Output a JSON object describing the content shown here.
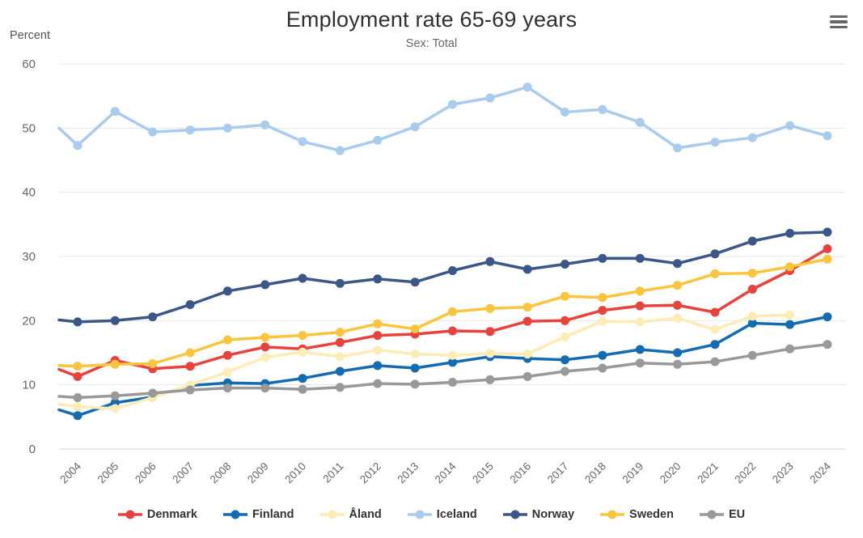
{
  "header": {
    "menu_icon": "hamburger-menu-icon"
  },
  "y_axis": {
    "title": "Percent",
    "ticks": [
      0,
      10,
      20,
      30,
      40,
      50,
      60
    ]
  },
  "chart_data": {
    "type": "line",
    "title": "Employment rate 65-69 years",
    "subtitle": "Sex: Total",
    "ylabel": "Percent",
    "ylim": [
      0,
      60
    ],
    "grid": "horizontal",
    "legend_position": "bottom",
    "x": [
      2004,
      2005,
      2006,
      2007,
      2008,
      2009,
      2010,
      2011,
      2012,
      2013,
      2014,
      2015,
      2016,
      2017,
      2018,
      2019,
      2020,
      2021,
      2022,
      2023,
      2024
    ],
    "series": [
      {
        "name": "Denmark",
        "color": "#e8423c",
        "lead_in": 12.4,
        "values": [
          11.3,
          13.8,
          12.5,
          12.9,
          14.6,
          15.9,
          15.6,
          16.6,
          17.7,
          17.9,
          18.4,
          18.3,
          19.9,
          20.0,
          21.6,
          22.3,
          22.4,
          21.3,
          24.9,
          27.8,
          31.2
        ]
      },
      {
        "name": "Finland",
        "color": "#136cb2",
        "lead_in": 6.1,
        "values": [
          5.2,
          7.2,
          8.1,
          9.9,
          10.3,
          10.2,
          11.0,
          12.1,
          13.0,
          12.6,
          13.5,
          14.4,
          14.1,
          13.9,
          14.6,
          15.5,
          15.0,
          16.3,
          19.6,
          19.4,
          20.6
        ]
      },
      {
        "name": "Åland",
        "color": "#fdecb4",
        "lead_in": 7.0,
        "values": [
          6.6,
          6.3,
          8.0,
          10.0,
          12.0,
          14.3,
          15.1,
          14.4,
          15.4,
          14.8,
          14.6,
          14.9,
          14.8,
          17.5,
          19.9,
          19.8,
          20.4,
          18.6,
          20.7,
          20.9,
          null
        ]
      },
      {
        "name": "Iceland",
        "color": "#a8cbee",
        "lead_in": 50.0,
        "values": [
          47.3,
          52.6,
          49.4,
          49.7,
          50.0,
          50.5,
          47.9,
          46.5,
          48.1,
          50.2,
          53.7,
          54.7,
          56.4,
          52.5,
          52.9,
          50.9,
          46.9,
          47.8,
          48.5,
          50.4,
          48.8
        ]
      },
      {
        "name": "Norway",
        "color": "#3a5788",
        "lead_in": 20.1,
        "values": [
          19.8,
          20.0,
          20.6,
          22.5,
          24.6,
          25.6,
          26.6,
          25.8,
          26.5,
          26.0,
          27.8,
          29.2,
          28.0,
          28.8,
          29.7,
          29.7,
          28.9,
          30.4,
          32.4,
          33.6,
          33.8
        ]
      },
      {
        "name": "Sweden",
        "color": "#fac53c",
        "lead_in": 13.0,
        "values": [
          12.9,
          13.2,
          13.3,
          15.0,
          17.0,
          17.4,
          17.7,
          18.2,
          19.5,
          18.7,
          21.4,
          21.9,
          22.1,
          23.8,
          23.6,
          24.6,
          25.5,
          27.3,
          27.4,
          28.4,
          29.6
        ]
      },
      {
        "name": "EU",
        "color": "#999999",
        "lead_in": 8.2,
        "values": [
          8.0,
          8.3,
          8.7,
          9.2,
          9.5,
          9.5,
          9.3,
          9.6,
          10.2,
          10.1,
          10.4,
          10.8,
          11.3,
          12.1,
          12.6,
          13.4,
          13.2,
          13.6,
          14.6,
          15.6,
          16.3
        ]
      }
    ]
  }
}
